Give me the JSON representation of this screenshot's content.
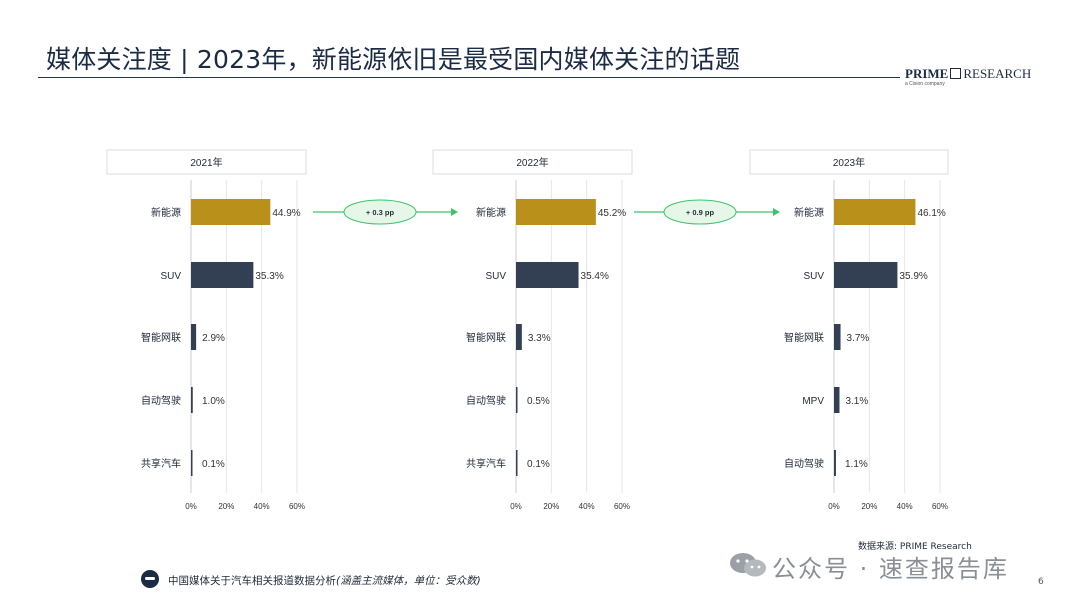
{
  "title": "媒体关注度 | 2023年，新能源依旧是最受国内媒体关注的话题",
  "logo": {
    "word1": "PRIME",
    "word2": "RESEARCH",
    "tagline": "a Cision company"
  },
  "colors": {
    "highlight": "#b8901a",
    "bar": "#333f53",
    "arrow": "#3cc469",
    "oval_fill": "#e6f7ea"
  },
  "chart_data": [
    {
      "type": "bar",
      "title": "2021年",
      "categories": [
        "新能源",
        "SUV",
        "智能网联",
        "自动驾驶",
        "共享汽车"
      ],
      "values": [
        44.9,
        35.3,
        2.9,
        1.0,
        0.1
      ],
      "value_labels": [
        "44.9%",
        "35.3%",
        "2.9%",
        "1.0%",
        "0.1%"
      ],
      "xticks": [
        "0%",
        "20%",
        "40%",
        "60%"
      ],
      "xlim": [
        0,
        60
      ],
      "highlight_index": 0
    },
    {
      "type": "bar",
      "title": "2022年",
      "categories": [
        "新能源",
        "SUV",
        "智能网联",
        "自动驾驶",
        "共享汽车"
      ],
      "values": [
        45.2,
        35.4,
        3.3,
        0.5,
        0.1
      ],
      "value_labels": [
        "45.2%",
        "35.4%",
        "3.3%",
        "0.5%",
        "0.1%"
      ],
      "xticks": [
        "0%",
        "20%",
        "40%",
        "60%"
      ],
      "xlim": [
        0,
        60
      ],
      "highlight_index": 0
    },
    {
      "type": "bar",
      "title": "2023年",
      "categories": [
        "新能源",
        "SUV",
        "智能网联",
        "MPV",
        "自动驾驶"
      ],
      "values": [
        46.1,
        35.9,
        3.7,
        3.1,
        1.1
      ],
      "value_labels": [
        "46.1%",
        "35.9%",
        "3.7%",
        "3.1%",
        "1.1%"
      ],
      "xticks": [
        "0%",
        "20%",
        "40%",
        "60%"
      ],
      "xlim": [
        0,
        60
      ],
      "highlight_index": 0
    }
  ],
  "changes": [
    "+ 0.3 pp",
    "+ 0.9 pp"
  ],
  "source": "数据来源: PRIME Research",
  "footer": {
    "text": "中国媒体关于汽车相关报道数据分析",
    "note": "(涵盖主流媒体，单位：受众数)"
  },
  "watermark": "公众号 · 速查报告库",
  "page_number": "6"
}
